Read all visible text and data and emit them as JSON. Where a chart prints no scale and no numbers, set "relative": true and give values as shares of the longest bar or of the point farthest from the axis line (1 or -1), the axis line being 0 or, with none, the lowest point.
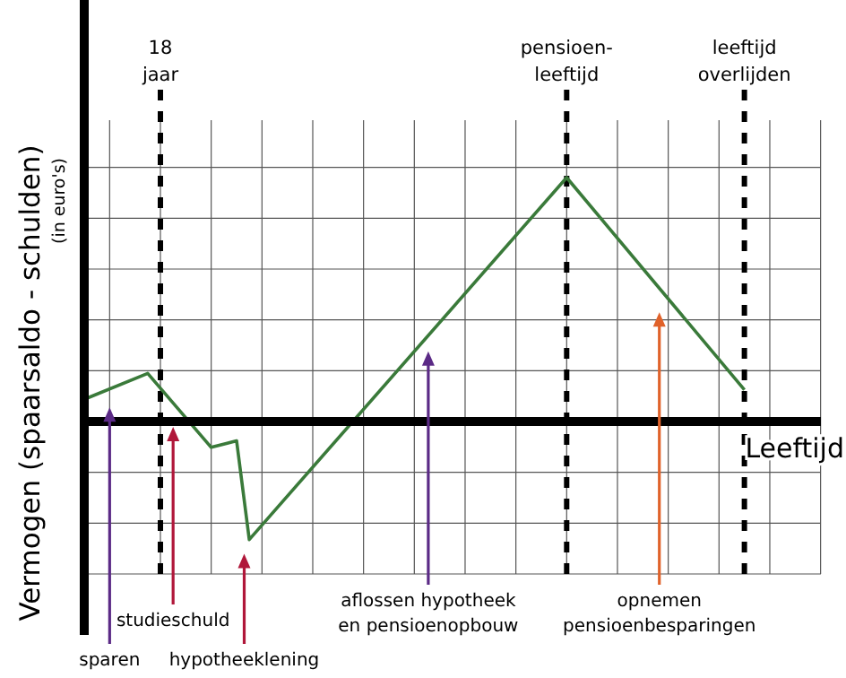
{
  "chart_data": {
    "type": "line",
    "relative": true,
    "xlabel": "Leeftijd",
    "ylabel": "Vermogen (spaarsaldo - schulden)\n(in euro's)",
    "categories": [
      null,
      null,
      null,
      null,
      null,
      null,
      null,
      null,
      null,
      null,
      null,
      null,
      null,
      null,
      null,
      null,
      null,
      null,
      null,
      null,
      null,
      null,
      null,
      null,
      null,
      null,
      null,
      null,
      null,
      null,
      null,
      null,
      null,
      null,
      null,
      null,
      null,
      null,
      null,
      null,
      null,
      null,
      null,
      null,
      null,
      null,
      null,
      null,
      null,
      null,
      null,
      null,
      null
    ],
    "grid": true,
    "marker": "none",
    "line_style": "solid",
    "series": [
      {
        "color": "#3a7a3a",
        "values": [
          0.091,
          null,
          null,
          null,
          null,
          0.197,
          null,
          null,
          null,
          null,
          -0.106,
          null,
          -0.079,
          -0.484,
          null,
          null,
          null,
          null,
          null,
          null,
          null,
          null,
          null,
          null,
          null,
          null,
          null,
          null,
          null,
          null,
          null,
          null,
          null,
          null,
          null,
          null,
          null,
          null,
          1,
          null,
          null,
          null,
          null,
          null,
          null,
          null,
          null,
          null,
          null,
          null,
          null,
          null,
          0.13
        ]
      }
    ],
    "annotations": [
      "18\njaar",
      "pensioen-\nleeftijd",
      "leeftijd\noverlijden",
      "sparen",
      "studieschuld",
      "hypotheeklening",
      "aflossen hypotheek\nen pensioenopbouw",
      "opnemen\npensioenbesparingen"
    ]
  }
}
